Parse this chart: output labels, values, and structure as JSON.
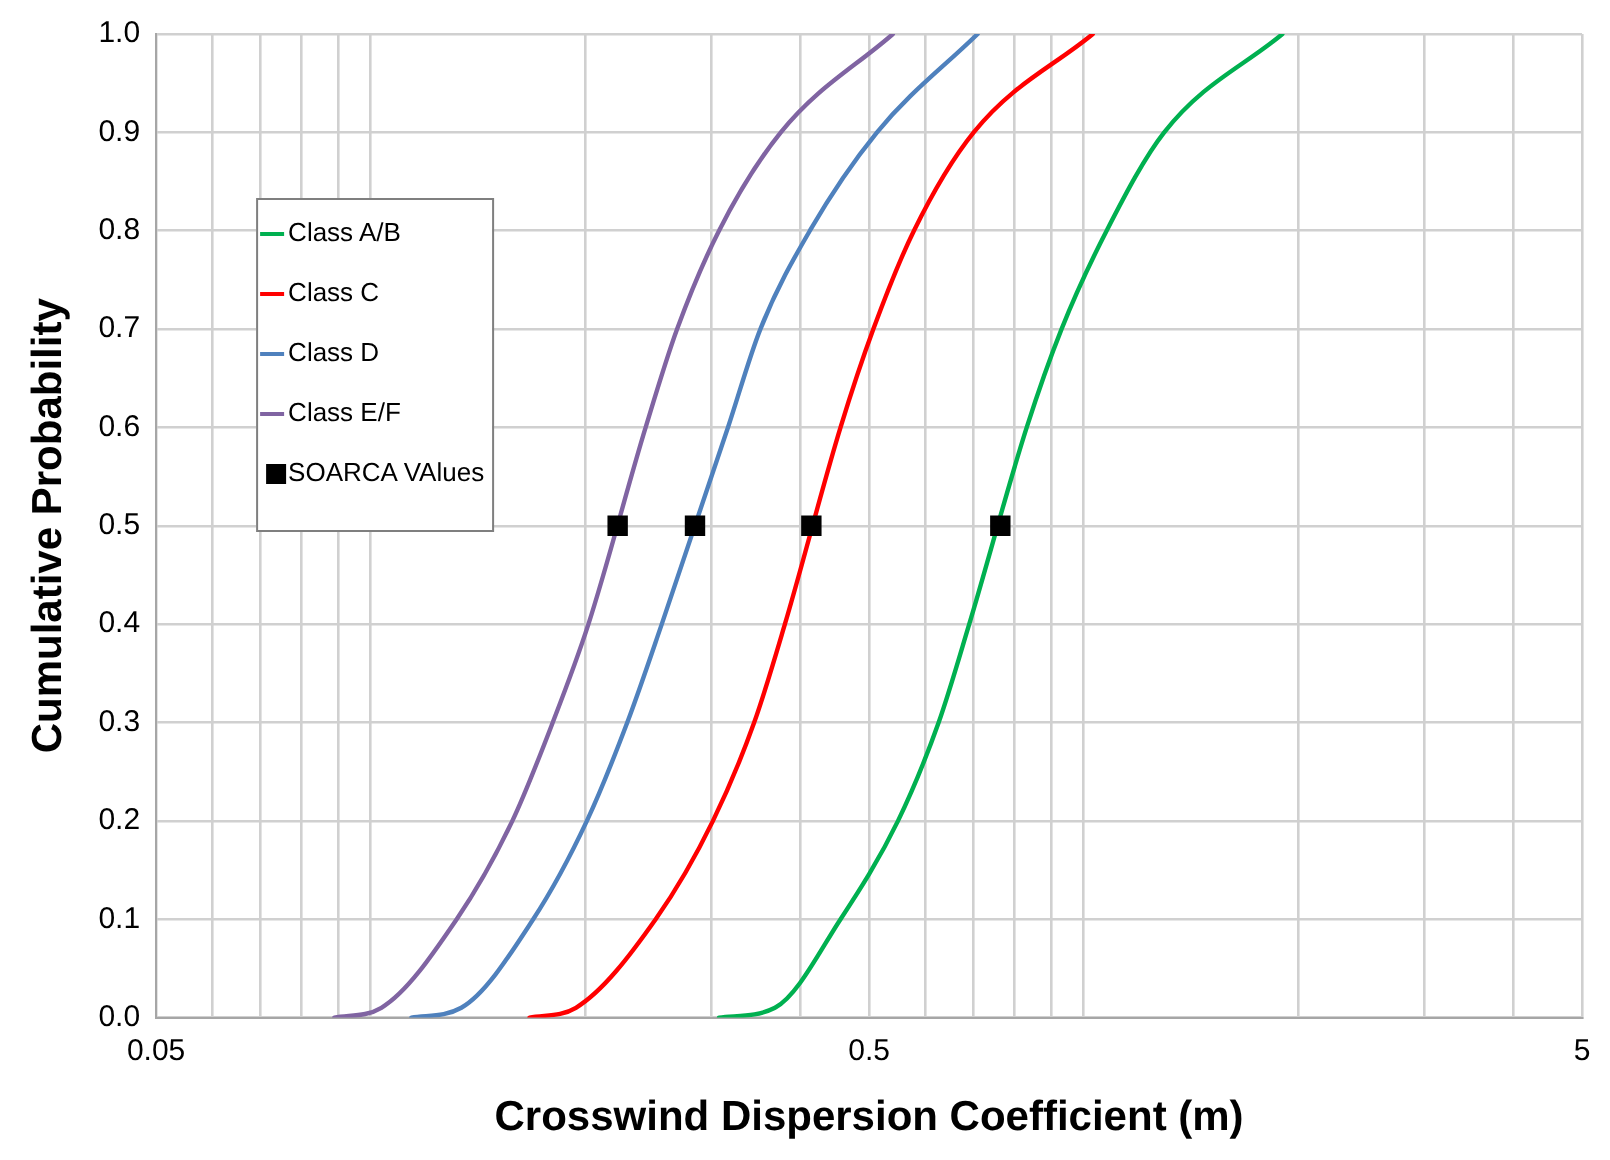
{
  "chart_data": {
    "type": "line",
    "xlabel": "Crosswind Dispersion Coefficient (m)",
    "ylabel": "Cumulative Probability",
    "log": "x",
    "xlim": [
      0.05,
      5
    ],
    "xticks": [
      0.05,
      {
        "value": 0.06,
        "label": null
      },
      {
        "value": 0.07,
        "label": null
      },
      {
        "value": 0.08,
        "label": null
      },
      {
        "value": 0.09,
        "label": null
      },
      {
        "value": 0.1,
        "label": null
      },
      {
        "value": 0.2,
        "label": null
      },
      {
        "value": 0.3,
        "label": null
      },
      {
        "value": 0.4,
        "label": null
      },
      0.5,
      {
        "value": 0.6,
        "label": null
      },
      {
        "value": 0.7,
        "label": null
      },
      {
        "value": 0.8,
        "label": null
      },
      {
        "value": 0.9,
        "label": null
      },
      {
        "value": 1,
        "label": null
      },
      {
        "value": 2,
        "label": null
      },
      {
        "value": 3,
        "label": null
      },
      {
        "value": 4,
        "label": null
      },
      5
    ],
    "ylim": [
      0,
      1
    ],
    "yticks": [
      {
        "value": 0,
        "label": "0.0"
      },
      0.1,
      0.2,
      0.3,
      0.4,
      0.5,
      0.6,
      0.7,
      0.8,
      0.9,
      {
        "value": 1,
        "label": "1.0"
      }
    ],
    "grid": true,
    "legend": "top left",
    "line_style": "solid",
    "marker": "none",
    "series": [
      {
        "name": "Class A/B",
        "color": "#00b050",
        "x": [
          0.308,
          0.369,
          0.456,
          0.549,
          0.626,
          0.691,
          0.832,
          0.931,
          1.077,
          1.297,
          1.9
        ],
        "values": [
          0,
          0.01,
          0.1,
          0.2,
          0.3,
          0.4,
          0.6,
          0.7,
          0.8,
          0.9,
          1
        ]
      },
      {
        "name": "Class C",
        "color": "#ff0000",
        "x": [
          0.167,
          0.194,
          0.251,
          0.302,
          0.345,
          0.381,
          0.456,
          0.507,
          0.578,
          0.701,
          1.03
        ],
        "values": [
          0,
          0.01,
          0.1,
          0.2,
          0.3,
          0.4,
          0.6,
          0.7,
          0.8,
          0.9,
          1
        ]
      },
      {
        "name": "Class D",
        "color": "#4f81bd",
        "x": [
          0.114,
          0.134,
          0.169,
          0.201,
          0.229,
          0.256,
          0.317,
          0.352,
          0.413,
          0.513,
          0.71
        ],
        "values": [
          0,
          0.01,
          0.1,
          0.2,
          0.3,
          0.4,
          0.6,
          0.7,
          0.8,
          0.9,
          1
        ]
      },
      {
        "name": "Class E/F",
        "color": "#8064a2",
        "x": [
          0.0889,
          0.1035,
          0.132,
          0.158,
          0.18,
          0.202,
          0.243,
          0.269,
          0.308,
          0.376,
          0.54
        ],
        "values": [
          0,
          0.01,
          0.1,
          0.2,
          0.3,
          0.4,
          0.6,
          0.7,
          0.8,
          0.9,
          1
        ]
      },
      {
        "name": "SOARCA VAlues",
        "type": "scatter",
        "marker": "square",
        "color": "#000000",
        "x": [
          0.222,
          0.285,
          0.415,
          0.764
        ],
        "values": [
          0.5,
          0.5,
          0.5,
          0.5
        ]
      }
    ]
  }
}
